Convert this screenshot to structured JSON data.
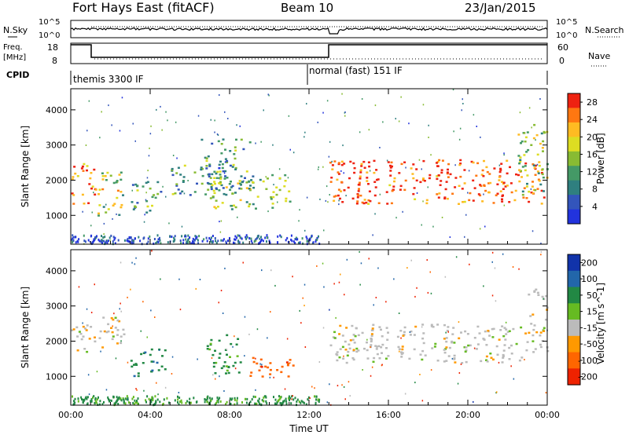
{
  "header": {
    "station": "Fort Hays East (fitACF)",
    "beam": "Beam 10",
    "date": "23/Jan/2015"
  },
  "side_labels": {
    "nsky": "N.Sky",
    "freq_line1": "Freq.",
    "freq_line2": "[MHz]",
    "cpid": "CPID",
    "nsearch": "N.Search",
    "nave": "Nave"
  },
  "status_panels": {
    "noise": {
      "left_ticks": [
        "10^5",
        "10^0"
      ],
      "right_ticks": [
        "10^5",
        "10^0"
      ]
    },
    "freq": {
      "left_ticks": [
        "18",
        "8"
      ],
      "right_ticks": [
        "60",
        "0"
      ]
    }
  },
  "cpid_segments": [
    {
      "label": "themis 3300 IF",
      "start_hour": 0,
      "end_hour": 12
    },
    {
      "label": "normal (fast) 151 IF",
      "start_hour": 12,
      "end_hour": 24
    }
  ],
  "colors": {
    "power_scale": [
      "#2233dd",
      "#3355bb",
      "#2f7f7f",
      "#449966",
      "#88bb33",
      "#dddd22",
      "#ffbb22",
      "#ff7711",
      "#ee2211"
    ],
    "velocity_scale": [
      "#1133aa",
      "#2266aa",
      "#228844",
      "#66bb22",
      "#bbbbbb",
      "#ff9900",
      "#ff6600",
      "#ee2200"
    ]
  },
  "chart_data": [
    {
      "type": "heatmap",
      "name": "power",
      "xlabel": "",
      "ylabel": "Slant Range [km]",
      "x_range_hours": [
        0,
        24
      ],
      "ylim": [
        180,
        4600
      ],
      "y_ticks": [
        "1000",
        "2000",
        "3000",
        "4000"
      ],
      "x_ticks": [
        "00:00",
        "04:00",
        "08:00",
        "12:00",
        "16:00",
        "20:00",
        "00:00"
      ],
      "colorbar": {
        "label": "Power [dB]",
        "range": [
          0,
          30
        ],
        "ticks": [
          "4",
          "8",
          "12",
          "16",
          "20",
          "24",
          "28"
        ]
      },
      "regions": [
        {
          "t0": 0.0,
          "t1": 1.2,
          "r0": 1350,
          "r1": 2500,
          "level": 0.85
        },
        {
          "t0": 1.2,
          "t1": 2.6,
          "r0": 1000,
          "r1": 2300,
          "level": 0.55
        },
        {
          "t0": 3.0,
          "t1": 4.6,
          "r0": 1100,
          "r1": 2000,
          "level": 0.4
        },
        {
          "t0": 5.0,
          "t1": 7.5,
          "r0": 1600,
          "r1": 2500,
          "level": 0.35
        },
        {
          "t0": 6.5,
          "t1": 9.0,
          "r0": 1700,
          "r1": 3200,
          "level": 0.4
        },
        {
          "t0": 7.0,
          "t1": 11.0,
          "r0": 1200,
          "r1": 2200,
          "level": 0.45
        },
        {
          "t0": 13.0,
          "t1": 23.8,
          "r0": 1350,
          "r1": 2600,
          "level": 0.9
        },
        {
          "t0": 22.5,
          "t1": 24.0,
          "r0": 1600,
          "r1": 3600,
          "level": 0.5
        }
      ]
    },
    {
      "type": "heatmap",
      "name": "velocity",
      "xlabel": "Time UT",
      "ylabel": "Slant Range [km]",
      "x_range_hours": [
        0,
        24
      ],
      "ylim": [
        180,
        4600
      ],
      "y_ticks": [
        "1000",
        "2000",
        "3000",
        "4000"
      ],
      "x_ticks": [
        "00:00",
        "04:00",
        "08:00",
        "12:00",
        "16:00",
        "20:00",
        "00:00"
      ],
      "colorbar": {
        "label": "Velocity [m s^-1]",
        "range": [
          -250,
          250
        ],
        "ticks": [
          "200",
          "100",
          "50",
          "15",
          "-15",
          "-50",
          "-100",
          "-200"
        ]
      },
      "regions": [
        {
          "t0": 0.0,
          "t1": 1.3,
          "r0": 1700,
          "r1": 2500,
          "value": 0
        },
        {
          "t0": 1.3,
          "t1": 2.8,
          "r0": 1800,
          "r1": 2700,
          "value": 0
        },
        {
          "t0": 3.0,
          "t1": 4.8,
          "r0": 1000,
          "r1": 1800,
          "value": 60
        },
        {
          "t0": 6.8,
          "t1": 8.6,
          "r0": 1100,
          "r1": 2200,
          "value": 40
        },
        {
          "t0": 9.0,
          "t1": 11.2,
          "r0": 1000,
          "r1": 1600,
          "value": -60
        },
        {
          "t0": 13.0,
          "t1": 23.0,
          "r0": 1400,
          "r1": 2500,
          "value": 0
        },
        {
          "t0": 23.0,
          "t1": 24.0,
          "r0": 1700,
          "r1": 3500,
          "value": 0
        }
      ]
    }
  ]
}
